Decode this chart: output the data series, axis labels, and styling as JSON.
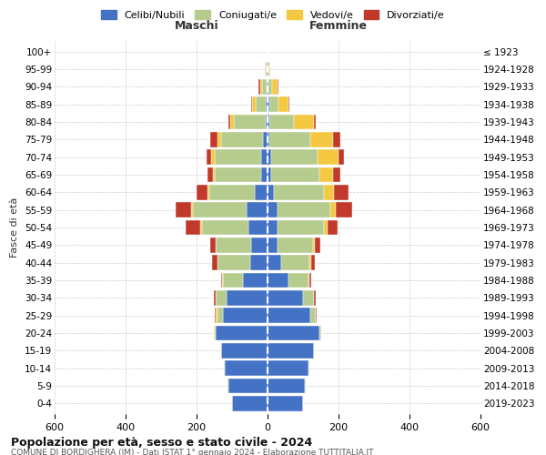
{
  "age_groups": [
    "0-4",
    "5-9",
    "10-14",
    "15-19",
    "20-24",
    "25-29",
    "30-34",
    "35-39",
    "40-44",
    "45-49",
    "50-54",
    "55-59",
    "60-64",
    "65-69",
    "70-74",
    "75-79",
    "80-84",
    "85-89",
    "90-94",
    "95-99",
    "100+"
  ],
  "birth_years": [
    "2019-2023",
    "2014-2018",
    "2009-2013",
    "2004-2008",
    "1999-2003",
    "1994-1998",
    "1989-1993",
    "1984-1988",
    "1979-1983",
    "1974-1978",
    "1969-1973",
    "1964-1968",
    "1959-1963",
    "1954-1958",
    "1949-1953",
    "1944-1948",
    "1939-1943",
    "1934-1938",
    "1929-1933",
    "1924-1928",
    "≤ 1923"
  ],
  "males": {
    "celibi": [
      100,
      110,
      120,
      130,
      145,
      125,
      115,
      70,
      50,
      45,
      55,
      60,
      35,
      18,
      18,
      12,
      5,
      5,
      2,
      2,
      0
    ],
    "coniugati": [
      0,
      2,
      2,
      2,
      5,
      15,
      30,
      55,
      90,
      100,
      130,
      150,
      130,
      130,
      130,
      120,
      90,
      28,
      14,
      3,
      0
    ],
    "vedovi": [
      0,
      0,
      2,
      0,
      2,
      5,
      2,
      2,
      2,
      2,
      5,
      5,
      5,
      5,
      10,
      10,
      10,
      10,
      5,
      2,
      0
    ],
    "divorziati": [
      0,
      0,
      0,
      0,
      0,
      5,
      5,
      5,
      15,
      15,
      40,
      45,
      30,
      15,
      15,
      20,
      5,
      2,
      5,
      0,
      0
    ]
  },
  "females": {
    "nubili": [
      100,
      105,
      115,
      130,
      145,
      120,
      100,
      60,
      38,
      28,
      28,
      28,
      18,
      10,
      10,
      5,
      5,
      5,
      2,
      2,
      0
    ],
    "coniugate": [
      0,
      2,
      2,
      2,
      5,
      15,
      30,
      55,
      80,
      100,
      130,
      150,
      140,
      135,
      130,
      115,
      70,
      25,
      10,
      3,
      0
    ],
    "vedove": [
      0,
      0,
      0,
      0,
      2,
      2,
      2,
      2,
      5,
      5,
      10,
      15,
      30,
      40,
      60,
      65,
      55,
      30,
      15,
      3,
      0
    ],
    "divorziate": [
      0,
      0,
      0,
      0,
      0,
      2,
      5,
      5,
      10,
      15,
      30,
      45,
      40,
      20,
      15,
      20,
      5,
      2,
      5,
      0,
      0
    ]
  },
  "colors": {
    "celibi_nubili": "#4472c4",
    "coniugati": "#b5cc8e",
    "vedovi": "#f5c842",
    "divorziati": "#c0392b"
  },
  "xlim": 600,
  "title": "Popolazione per età, sesso e stato civile - 2024",
  "subtitle": "COMUNE DI BORDIGHERA (IM) - Dati ISTAT 1° gennaio 2024 - Elaborazione TUTTITALIA.IT",
  "ylabel": "Fasce di età",
  "maschi_label": "Maschi",
  "femmine_label": "Femmine",
  "legend_labels": [
    "Celibi/Nubili",
    "Coniugati/e",
    "Vedovi/e",
    "Divorziati/e"
  ],
  "bg_color": "#ffffff",
  "bar_height": 0.85
}
